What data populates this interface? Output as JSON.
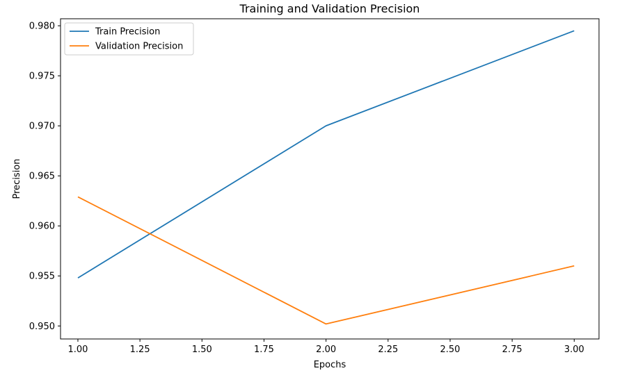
{
  "chart_data": {
    "type": "line",
    "title": "Training and Validation Precision",
    "xlabel": "Epochs",
    "ylabel": "Precision",
    "x": [
      1.0,
      2.0,
      3.0
    ],
    "xlim": [
      0.93,
      3.1
    ],
    "ylim": [
      0.9487,
      0.9807
    ],
    "xticks": [
      1.0,
      1.25,
      1.5,
      1.75,
      2.0,
      2.25,
      2.5,
      2.75,
      3.0
    ],
    "xtick_labels": [
      "1.00",
      "1.25",
      "1.50",
      "1.75",
      "2.00",
      "2.25",
      "2.50",
      "2.75",
      "3.00"
    ],
    "yticks": [
      0.95,
      0.955,
      0.96,
      0.965,
      0.97,
      0.975,
      0.98
    ],
    "ytick_labels": [
      "0.950",
      "0.955",
      "0.960",
      "0.965",
      "0.970",
      "0.975",
      "0.980"
    ],
    "grid": false,
    "legend_position": "top-left",
    "series": [
      {
        "name": "Train Precision",
        "color": "#1f77b4",
        "values": [
          0.9548,
          0.97,
          0.9795
        ]
      },
      {
        "name": "Validation Precision",
        "color": "#ff7f0e",
        "values": [
          0.9629,
          0.9502,
          0.956
        ]
      }
    ]
  }
}
